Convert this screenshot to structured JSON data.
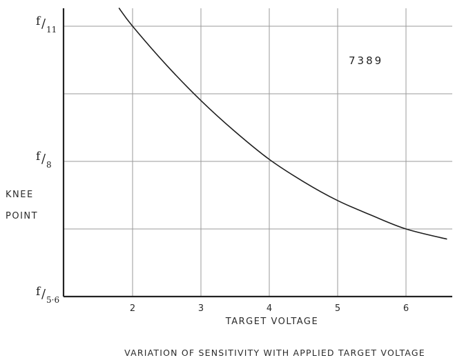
{
  "chart_data": {
    "type": "line",
    "title": "VARIATION OF SENSITIVITY WITH APPLIED TARGET VOLTAGE",
    "xlabel": "TARGET VOLTAGE",
    "ylabel": [
      "KNEE",
      "POINT"
    ],
    "annotation": "7389",
    "x_ticks": [
      2,
      3,
      4,
      5,
      6
    ],
    "xlim": [
      1,
      6.6
    ],
    "y_ticks": [
      {
        "base": "f",
        "den": "5·6",
        "level": 0
      },
      {
        "base": "f",
        "den": "8",
        "level": 2
      },
      {
        "base": "f",
        "den": "11",
        "level": 4
      }
    ],
    "y_gridlines": [
      1,
      2,
      3,
      4
    ],
    "ylim": [
      0,
      4
    ],
    "grid": true,
    "series": [
      {
        "x": [
          1.8,
          2.0,
          2.5,
          3.0,
          3.5,
          4.0,
          4.5,
          5.0,
          5.5,
          6.0,
          6.6
        ],
        "y": [
          4.27,
          4.0,
          3.42,
          2.9,
          2.44,
          2.03,
          1.7,
          1.42,
          1.2,
          1.0,
          0.85
        ]
      }
    ]
  }
}
